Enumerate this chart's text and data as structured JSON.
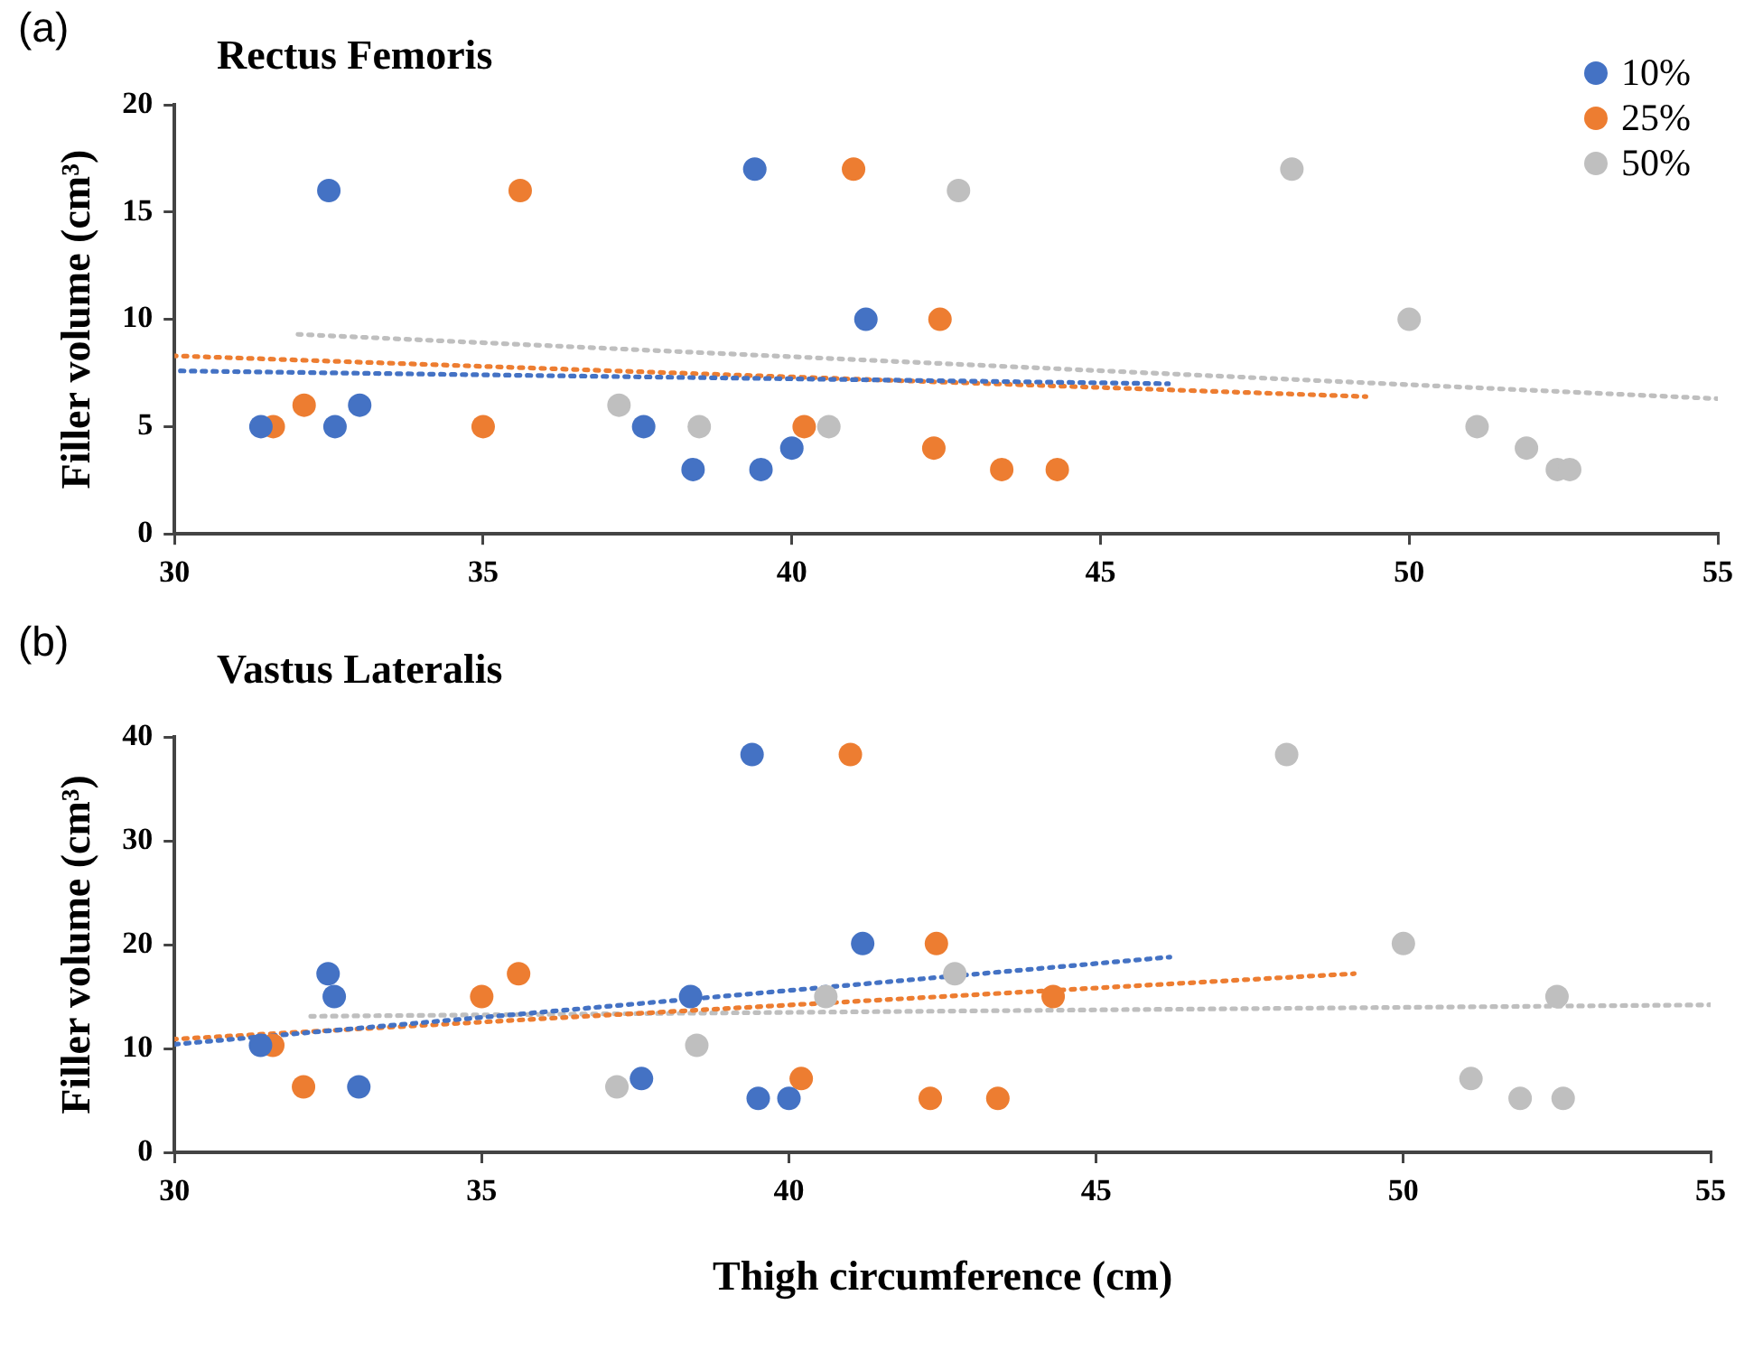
{
  "chart_data": [
    {
      "type": "scatter",
      "title": "Rectus Femoris",
      "ylabel": "Filler volume (cm³)",
      "annotations": [
        "(a)"
      ],
      "xlim": [
        30,
        55
      ],
      "xticks": [
        30,
        35,
        40,
        45,
        50,
        55
      ],
      "ylim": [
        0,
        20
      ],
      "yticks": [
        0,
        5,
        10,
        15,
        20
      ],
      "grid": false,
      "legend": "top right",
      "series": [
        {
          "name": "10%",
          "color": "#4472c4",
          "marker": "circle",
          "x": [
            31.4,
            32.5,
            32.6,
            33.0,
            37.6,
            38.4,
            39.4,
            39.5,
            40.0,
            41.2
          ],
          "values": [
            5,
            16,
            5,
            6,
            5,
            3,
            17,
            3,
            4,
            10
          ]
        },
        {
          "name": "25%",
          "color": "#ed7d31",
          "marker": "circle",
          "x": [
            31.6,
            32.1,
            35.0,
            35.6,
            40.2,
            41.0,
            42.4,
            42.3,
            43.4,
            44.3
          ],
          "values": [
            5,
            6,
            5,
            16,
            5,
            17,
            10,
            4,
            3,
            3
          ]
        },
        {
          "name": "50%",
          "color": "#bfbfbf",
          "marker": "circle",
          "x": [
            37.2,
            38.5,
            40.6,
            42.7,
            48.1,
            50.0,
            51.1,
            51.9,
            52.4,
            52.6
          ],
          "values": [
            6,
            5,
            5,
            16,
            17,
            10,
            5,
            4,
            3,
            3
          ]
        },
        {
          "type": "line",
          "color": "#4472c4",
          "marker": "none",
          "line_style": "dotted",
          "x": [
            30,
            46.1
          ],
          "values": [
            7.6,
            7.0
          ]
        },
        {
          "type": "line",
          "color": "#ed7d31",
          "marker": "none",
          "line_style": "dotted",
          "x": [
            30,
            49.3
          ],
          "values": [
            8.3,
            6.4
          ]
        },
        {
          "type": "line",
          "color": "#bfbfbf",
          "marker": "none",
          "line_style": "dotted",
          "x": [
            32.0,
            55
          ],
          "values": [
            9.3,
            6.3
          ]
        }
      ]
    },
    {
      "type": "scatter",
      "title": "Vastus Lateralis",
      "xlabel": "Thigh circumference (cm)",
      "ylabel": "Filler volume (cm³)",
      "annotations": [
        "(b)"
      ],
      "xlim": [
        30,
        55
      ],
      "xticks": [
        30,
        35,
        40,
        45,
        50,
        55
      ],
      "ylim": [
        0,
        40
      ],
      "yticks": [
        0,
        10,
        20,
        30,
        40
      ],
      "grid": false,
      "series": [
        {
          "color": "#4472c4",
          "marker": "circle",
          "x": [
            31.4,
            32.5,
            32.6,
            33.0,
            37.6,
            38.4,
            39.4,
            39.5,
            40.0,
            41.2
          ],
          "values": [
            10.3,
            17.2,
            15,
            6.3,
            7.1,
            15,
            38.3,
            5.2,
            5.2,
            20.1
          ]
        },
        {
          "color": "#ed7d31",
          "marker": "circle",
          "x": [
            31.6,
            32.1,
            35.0,
            35.6,
            40.2,
            41.0,
            42.4,
            42.3,
            43.4,
            44.3
          ],
          "values": [
            10.3,
            6.3,
            15,
            17.2,
            7.1,
            38.3,
            20.1,
            5.2,
            5.2,
            15
          ]
        },
        {
          "color": "#bfbfbf",
          "marker": "circle",
          "x": [
            37.2,
            38.5,
            40.6,
            42.7,
            48.1,
            50.0,
            51.1,
            51.9,
            52.6,
            52.5
          ],
          "values": [
            6.3,
            10.3,
            15,
            17.2,
            38.3,
            20.1,
            7.1,
            5.2,
            5.2,
            15
          ]
        },
        {
          "type": "line",
          "color": "#4472c4",
          "marker": "none",
          "line_style": "dotted",
          "x": [
            30,
            46.2
          ],
          "values": [
            10.4,
            18.8
          ]
        },
        {
          "type": "line",
          "color": "#ed7d31",
          "marker": "none",
          "line_style": "dotted",
          "x": [
            30,
            49.2
          ],
          "values": [
            10.9,
            17.2
          ]
        },
        {
          "type": "line",
          "color": "#bfbfbf",
          "marker": "none",
          "line_style": "dotted",
          "x": [
            32.2,
            55
          ],
          "values": [
            13.1,
            14.2
          ]
        }
      ]
    }
  ]
}
